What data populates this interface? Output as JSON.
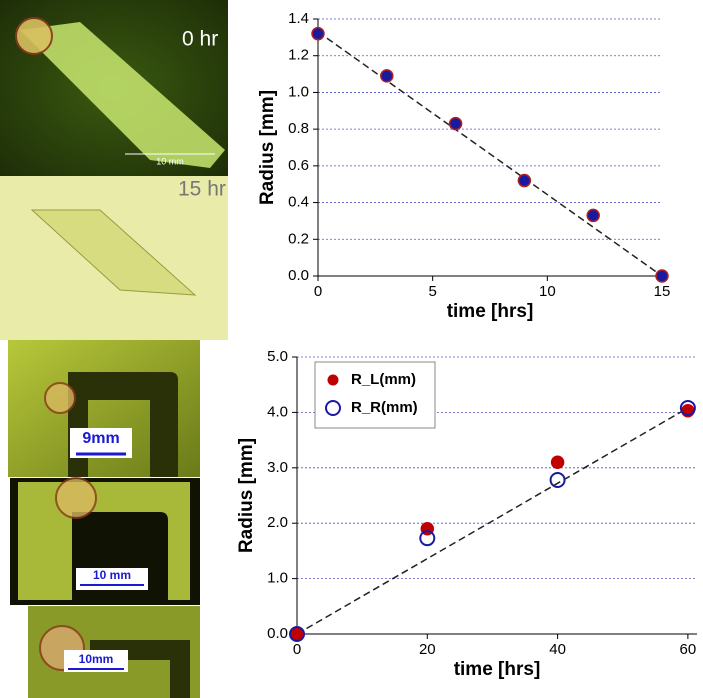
{
  "photos": [
    {
      "label": "0 hr",
      "scale": "10 mm"
    },
    {
      "label": "15 hr"
    },
    {
      "scale": "9mm"
    },
    {
      "scale": "10 mm"
    },
    {
      "scale": "10mm"
    }
  ],
  "chart_data": [
    {
      "type": "scatter",
      "xlabel": "time [hrs]",
      "ylabel": "Radius [mm]",
      "x": [
        0,
        3,
        6,
        9,
        12,
        15
      ],
      "series": [
        {
          "color": "#1a1aa0",
          "edge_color": "#b02020",
          "marker": "filled",
          "values": [
            1.32,
            1.09,
            0.83,
            0.52,
            0.33,
            0.0
          ]
        }
      ],
      "trendline": {
        "x": [
          0,
          15
        ],
        "y": [
          1.33,
          0
        ]
      },
      "xlim": [
        0,
        15
      ],
      "ylim": [
        0,
        1.4
      ],
      "xticks": [
        0,
        5,
        10,
        15
      ],
      "yticks": [
        {
          "value": 0,
          "label": "0.0"
        },
        0.2,
        0.4,
        0.6,
        0.8,
        {
          "value": 1,
          "label": "1.0"
        },
        1.2,
        1.4
      ],
      "grid": true
    },
    {
      "type": "scatter",
      "xlabel": "time [hrs]",
      "ylabel": "Radius [mm]",
      "x": [
        0,
        20,
        40,
        60
      ],
      "series": [
        {
          "name": "R_L(mm)",
          "color": "#c00000",
          "marker": "filled",
          "values": [
            0,
            1.9,
            3.1,
            4.03
          ]
        },
        {
          "name": "R_R(mm)",
          "color": "#1a1aa0",
          "marker": "open",
          "values": [
            0,
            1.73,
            2.78,
            4.08
          ]
        }
      ],
      "trendline": {
        "x": [
          0,
          60
        ],
        "y": [
          0,
          4.08
        ]
      },
      "xlim": [
        0,
        61.4
      ],
      "ylim": [
        0,
        5
      ],
      "xticks": [
        0,
        20,
        40,
        60
      ],
      "yticks": [
        {
          "value": 0,
          "label": "0.0"
        },
        {
          "value": 1,
          "label": "1.0"
        },
        {
          "value": 2,
          "label": "2.0"
        },
        {
          "value": 3,
          "label": "3.0"
        },
        {
          "value": 4,
          "label": "4.0"
        },
        {
          "value": 5,
          "label": "5.0"
        }
      ],
      "grid": true,
      "legend": "upper left"
    }
  ]
}
